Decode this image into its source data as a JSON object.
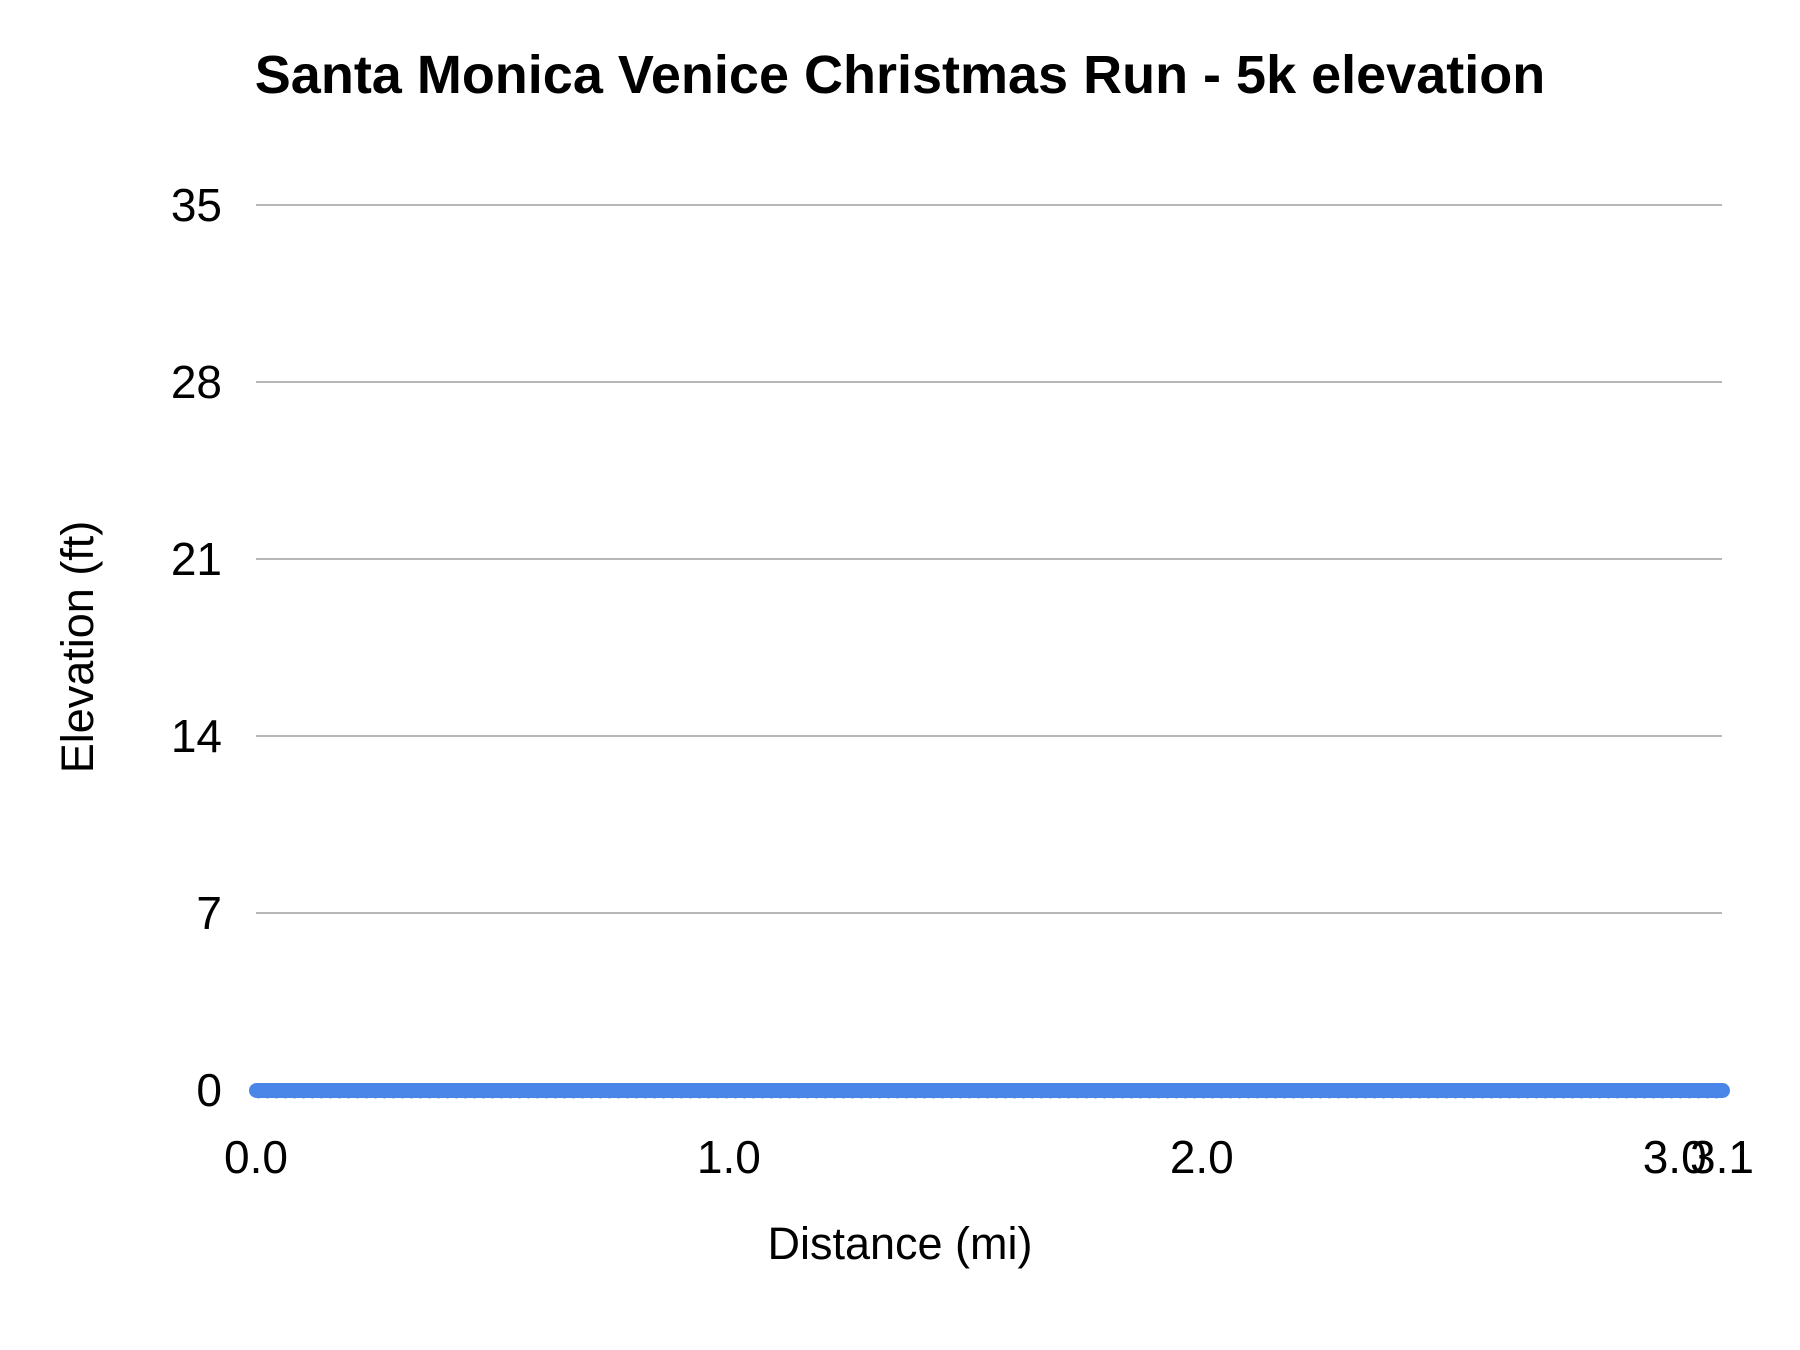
{
  "chart_data": {
    "type": "line",
    "title": "Santa Monica Venice Christmas Run - 5k elevation",
    "xlabel": "Distance (mi)",
    "ylabel": "Elevation (ft)",
    "xlim": [
      0,
      3.1
    ],
    "ylim": [
      0,
      35
    ],
    "x_ticks": [
      {
        "label": "0.0",
        "value": 0.0
      },
      {
        "label": "1.0",
        "value": 1.0
      },
      {
        "label": "2.0",
        "value": 2.0
      },
      {
        "label": "3.0",
        "value": 3.0
      },
      {
        "label": "3.1",
        "value": 3.1
      }
    ],
    "y_ticks": [
      0,
      7,
      14,
      21,
      28,
      35
    ],
    "grid": "horizontal",
    "legend": "none",
    "series": [
      {
        "name": "Elevation",
        "color": "#4a86e8",
        "x": [
          0.0,
          0.5,
          1.0,
          1.5,
          2.0,
          2.5,
          3.0,
          3.1
        ],
        "values": [
          0,
          0,
          0,
          0,
          0,
          0,
          0,
          0
        ]
      }
    ],
    "colors": {
      "gridline": "#b7b7b7",
      "text": "#000000",
      "background": "#ffffff"
    }
  }
}
